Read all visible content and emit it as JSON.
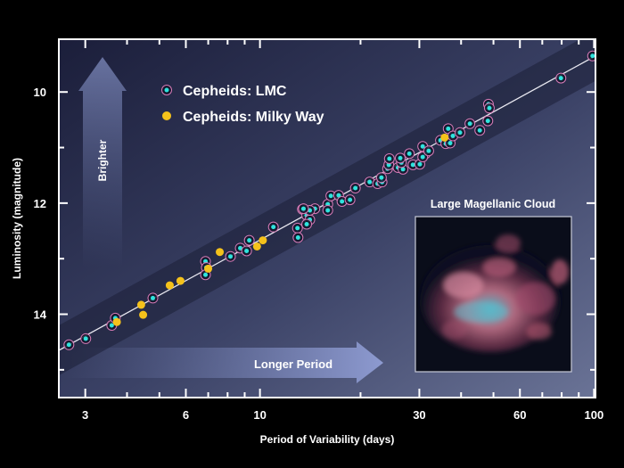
{
  "chart_data": {
    "type": "scatter",
    "xlabel": "Period of Variability (days)",
    "ylabel": "Luminosity (magnitude)",
    "x_scale": "log",
    "xlim": [
      2.5,
      101
    ],
    "ylim": [
      15.5,
      9.05
    ],
    "y_inverted": true,
    "x_ticks": [
      3,
      6,
      10,
      30,
      60,
      100
    ],
    "y_ticks": [
      10,
      12,
      14
    ],
    "grid": false,
    "legend_position": "top-left",
    "fit_line": {
      "x": [
        2.5,
        101
      ],
      "y": [
        14.65,
        9.35
      ]
    },
    "series": [
      {
        "name": "Cepheids: LMC",
        "color": "#2fe3dd",
        "ring_color": "#d77ab6",
        "points": [
          [
            2.68,
            14.55
          ],
          [
            3.01,
            14.44
          ],
          [
            3.6,
            14.2
          ],
          [
            3.69,
            14.07
          ],
          [
            4.78,
            13.71
          ],
          [
            6.87,
            13.05
          ],
          [
            6.91,
            13.16
          ],
          [
            6.87,
            13.29
          ],
          [
            8.16,
            12.96
          ],
          [
            8.73,
            12.81
          ],
          [
            9.12,
            12.86
          ],
          [
            9.29,
            12.67
          ],
          [
            10.97,
            12.43
          ],
          [
            12.95,
            12.45
          ],
          [
            13.0,
            12.62
          ],
          [
            13.4,
            12.11
          ],
          [
            13.8,
            12.22
          ],
          [
            14.1,
            12.3
          ],
          [
            13.8,
            12.38
          ],
          [
            14.6,
            12.1
          ],
          [
            14.1,
            12.13
          ],
          [
            13.5,
            12.1
          ],
          [
            15.96,
            12.02
          ],
          [
            15.96,
            12.13
          ],
          [
            16.3,
            11.87
          ],
          [
            17.2,
            11.86
          ],
          [
            17.6,
            11.97
          ],
          [
            18.6,
            11.94
          ],
          [
            19.3,
            11.73
          ],
          [
            21.3,
            11.62
          ],
          [
            22.5,
            11.65
          ],
          [
            23.2,
            11.62
          ],
          [
            23.1,
            11.54
          ],
          [
            24.1,
            11.38
          ],
          [
            24.3,
            11.31
          ],
          [
            24.4,
            11.2
          ],
          [
            25.9,
            11.36
          ],
          [
            26.8,
            11.39
          ],
          [
            26.5,
            11.27
          ],
          [
            26.3,
            11.19
          ],
          [
            28.0,
            11.11
          ],
          [
            28.7,
            11.31
          ],
          [
            30.1,
            11.3
          ],
          [
            31.3,
            11.11
          ],
          [
            30.7,
            10.98
          ],
          [
            30.7,
            11.17
          ],
          [
            32.0,
            11.06
          ],
          [
            34.7,
            10.87
          ],
          [
            36.0,
            10.93
          ],
          [
            37.1,
            10.92
          ],
          [
            36.6,
            10.66
          ],
          [
            37.8,
            10.79
          ],
          [
            39.7,
            10.73
          ],
          [
            42.5,
            10.57
          ],
          [
            45.5,
            10.69
          ],
          [
            48.1,
            10.52
          ],
          [
            48.3,
            10.22
          ],
          [
            48.6,
            10.29
          ],
          [
            79.6,
            9.75
          ],
          [
            99,
            9.35
          ]
        ]
      },
      {
        "name": "Cepheids: Milky Way",
        "color": "#f5c21b",
        "points": [
          [
            3.73,
            14.14
          ],
          [
            4.47,
            14.01
          ],
          [
            4.41,
            13.83
          ],
          [
            5.37,
            13.48
          ],
          [
            5.78,
            13.4
          ],
          [
            7.0,
            13.18
          ],
          [
            7.58,
            12.88
          ],
          [
            9.8,
            12.78
          ],
          [
            10.2,
            12.67
          ],
          [
            35.7,
            10.82
          ]
        ]
      }
    ],
    "annotations": {
      "brighter_arrow": "Brighter",
      "period_arrow": "Longer Period",
      "inset_title": "Large Magellanic Cloud"
    }
  }
}
